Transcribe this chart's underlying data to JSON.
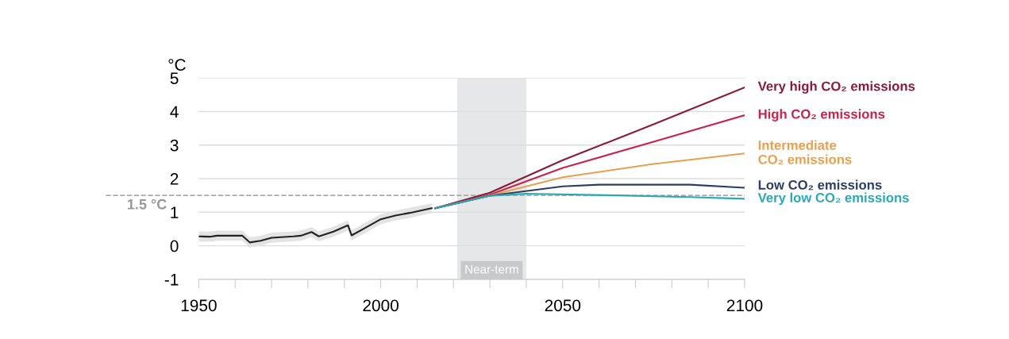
{
  "chart_data": {
    "type": "line",
    "ylabel": "°C",
    "xlim": [
      1950,
      2100
    ],
    "ylim": [
      -1,
      5
    ],
    "xticks": [
      1950,
      {
        "value": 1960,
        "label": null
      },
      {
        "value": 1970,
        "label": null
      },
      {
        "value": 1980,
        "label": null
      },
      {
        "value": 1990,
        "label": null
      },
      2000,
      {
        "value": 2010,
        "label": null
      },
      {
        "value": 2020,
        "label": null
      },
      {
        "value": 2030,
        "label": null
      },
      {
        "value": 2040,
        "label": null
      },
      2050,
      {
        "value": 2060,
        "label": null
      },
      {
        "value": 2070,
        "label": null
      },
      {
        "value": 2080,
        "label": null
      },
      {
        "value": 2090,
        "label": null
      },
      2100
    ],
    "yticks": [
      -1,
      0,
      1,
      2,
      3,
      4,
      5
    ],
    "grid": "y",
    "ref_lines": [
      {
        "axis": "y",
        "value": 1.5,
        "label": "1.5 °C",
        "color": "#aaaaaa",
        "line_style": "dashed"
      }
    ],
    "bands": [
      {
        "axis": "x",
        "from": 2021,
        "to": 2040,
        "label": "Near-term",
        "color": "#e6e7e9"
      }
    ],
    "series": [
      {
        "color": "#222222",
        "x": [
          1950,
          1953,
          1955,
          1962,
          1964,
          1967,
          1970,
          1976,
          1978,
          1981,
          1983,
          1987,
          1991,
          1992,
          1996,
          2000,
          2004,
          2008,
          2014
        ],
        "values": [
          0.28,
          0.27,
          0.3,
          0.3,
          0.1,
          0.15,
          0.24,
          0.28,
          0.3,
          0.41,
          0.28,
          0.42,
          0.61,
          0.31,
          0.55,
          0.79,
          0.9,
          0.98,
          1.12
        ],
        "lower": [
          0.13,
          0.12,
          0.15,
          0.15,
          -0.05,
          0.0,
          0.09,
          0.13,
          0.15,
          0.26,
          0.13,
          0.27,
          0.46,
          0.16,
          0.4,
          0.64,
          0.75,
          0.83,
          0.97
        ],
        "upper": [
          0.43,
          0.42,
          0.45,
          0.45,
          0.25,
          0.3,
          0.39,
          0.43,
          0.45,
          0.56,
          0.43,
          0.57,
          0.76,
          0.46,
          0.7,
          0.94,
          1.05,
          1.13,
          1.27
        ]
      },
      {
        "name": "Very high CO₂ emissions",
        "color": "#8b1a3a",
        "x": [
          2015,
          2030,
          2050,
          2075,
          2100
        ],
        "values": [
          1.12,
          1.58,
          2.55,
          3.62,
          4.72
        ]
      },
      {
        "name": "High CO₂ emissions",
        "color": "#c8234b",
        "x": [
          2015,
          2030,
          2050,
          2075,
          2100
        ],
        "values": [
          1.12,
          1.52,
          2.32,
          3.1,
          3.89
        ]
      },
      {
        "name": "Intermediate\nCO₂ emissions",
        "color": "#e8a050",
        "x": [
          2015,
          2030,
          2050,
          2075,
          2100
        ],
        "values": [
          1.12,
          1.5,
          2.04,
          2.44,
          2.75
        ]
      },
      {
        "name": "Low CO₂ emissions",
        "color": "#2b3f63",
        "x": [
          2015,
          2030,
          2050,
          2060,
          2085,
          2100
        ],
        "values": [
          1.12,
          1.49,
          1.77,
          1.82,
          1.82,
          1.73
        ]
      },
      {
        "name": "Very low CO₂ emissions",
        "color": "#2aa8b8",
        "x": [
          2015,
          2030,
          2040,
          2065,
          2085,
          2100
        ],
        "values": [
          1.12,
          1.49,
          1.55,
          1.5,
          1.45,
          1.4
        ]
      }
    ]
  }
}
